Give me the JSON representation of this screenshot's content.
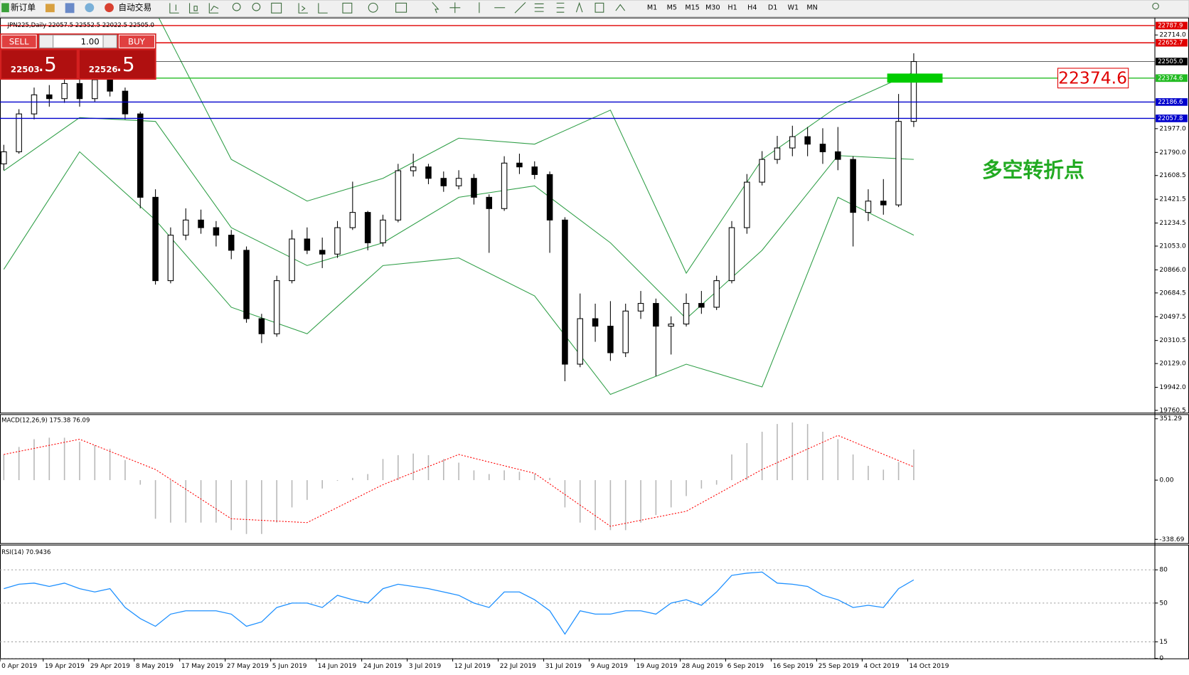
{
  "toolbar": {
    "new_order": "新订单",
    "auto_trading": "自动交易",
    "timeframes": [
      "M1",
      "M5",
      "M15",
      "M30",
      "H1",
      "H4",
      "D1",
      "W1",
      "MN"
    ]
  },
  "trade_panel": {
    "sell": "SELL",
    "buy": "BUY",
    "lot": "1.00",
    "bid_main": "22503",
    "bid_frac": ".5",
    "ask_main": "22526",
    "ask_frac": ".5"
  },
  "chart_data": [
    {
      "type": "candlestick",
      "title": "JPN225,Daily  22057.5 22552.5 22022.5 22505.0",
      "xlim": [
        -0.25,
        75.9
      ],
      "xticks": [
        {
          "value": -0.25,
          "label": "0 Apr 2019"
        },
        {
          "value": 2.6,
          "label": "19 Apr 2019"
        },
        {
          "value": 5.6,
          "label": "29 Apr 2019"
        },
        {
          "value": 8.6,
          "label": "8 May 2019"
        },
        {
          "value": 11.6,
          "label": "17 May 2019"
        },
        {
          "value": 14.6,
          "label": "27 May 2019"
        },
        {
          "value": 17.6,
          "label": "5 Jun 2019"
        },
        {
          "value": 20.6,
          "label": "14 Jun 2019"
        },
        {
          "value": 23.6,
          "label": "24 Jun 2019"
        },
        {
          "value": 26.6,
          "label": "3 Jul 2019"
        },
        {
          "value": 29.6,
          "label": "12 Jul 2019"
        },
        {
          "value": 32.6,
          "label": "22 Jul 2019"
        },
        {
          "value": 35.6,
          "label": "31 Jul 2019"
        },
        {
          "value": 38.6,
          "label": "9 Aug 2019"
        },
        {
          "value": 41.6,
          "label": "19 Aug 2019"
        },
        {
          "value": 44.6,
          "label": "28 Aug 2019"
        },
        {
          "value": 47.6,
          "label": "6 Sep 2019"
        },
        {
          "value": 50.6,
          "label": "16 Sep 2019"
        },
        {
          "value": 53.6,
          "label": "25 Sep 2019"
        },
        {
          "value": 56.6,
          "label": "4 Oct 2019"
        },
        {
          "value": 59.6,
          "label": "14 Oct 2019"
        }
      ],
      "ylim": [
        19742.4,
        22821.4
      ],
      "yticks": [
        {
          "value": 22714,
          "label": "22714.0"
        },
        {
          "value": 21977,
          "label": "21977.0"
        },
        {
          "value": 21790,
          "label": "21790.0"
        },
        21608.5,
        21421.5,
        21234.5,
        {
          "value": 21053,
          "label": "21053.0"
        },
        {
          "value": 20866,
          "label": "20866.0"
        },
        20684.5,
        20497.5,
        20310.5,
        {
          "value": 20129,
          "label": "20129.0"
        },
        {
          "value": 19942,
          "label": "19942.0"
        },
        19760.5
      ],
      "open": [
        21700,
        21795,
        22093,
        22243,
        22213,
        22332,
        22213,
        22362,
        22272,
        22093,
        21437,
        20781,
        21139,
        21258,
        21198,
        21139,
        21020,
        20482,
        20363,
        20781,
        21109,
        21020,
        20990,
        21198,
        21318,
        21079,
        21258,
        21646,
        21676,
        21586,
        21527,
        21586,
        21437,
        21348,
        21706,
        21676,
        21616,
        21258,
        20124,
        20482,
        20423,
        20214,
        20542,
        20602,
        20423,
        20440,
        20602,
        20572,
        20781,
        21198,
        21556,
        21735,
        21825,
        21914,
        21855,
        21795,
        21735,
        21318,
        21407,
        21377,
        22034
      ],
      "high": [
        21850,
        22130,
        22300,
        22320,
        22400,
        22380,
        22420,
        22400,
        22300,
        22110,
        21500,
        21200,
        21350,
        21340,
        21250,
        21180,
        21050,
        20520,
        20820,
        21180,
        21200,
        21120,
        21250,
        21560,
        21330,
        21300,
        21700,
        21780,
        21700,
        21640,
        21650,
        21620,
        21460,
        21760,
        21780,
        21720,
        21640,
        21280,
        20680,
        20600,
        20620,
        20600,
        20700,
        20640,
        20500,
        20680,
        20700,
        20820,
        21250,
        21620,
        21800,
        21920,
        22000,
        21990,
        21980,
        21990,
        21760,
        21500,
        21580,
        22250,
        22570
      ],
      "low": [
        21650,
        21780,
        22050,
        22150,
        22180,
        22150,
        22190,
        22230,
        22050,
        21350,
        20750,
        20760,
        21100,
        21150,
        21050,
        20950,
        20450,
        20290,
        20340,
        20760,
        20990,
        20880,
        20960,
        21180,
        21020,
        21050,
        21240,
        21600,
        21540,
        21480,
        21500,
        21380,
        21000,
        21330,
        21620,
        21580,
        21000,
        19990,
        20100,
        20300,
        20150,
        20180,
        20480,
        20030,
        20200,
        20420,
        20520,
        20550,
        20760,
        21150,
        21530,
        21700,
        21760,
        21760,
        21700,
        21650,
        21050,
        21250,
        21300,
        21360,
        21990
      ],
      "close": [
        21795,
        22093,
        22243,
        22213,
        22332,
        22213,
        22362,
        22272,
        22093,
        21437,
        20781,
        21139,
        21258,
        21198,
        21139,
        21020,
        20482,
        20363,
        20781,
        21109,
        21020,
        20990,
        21198,
        21318,
        21079,
        21258,
        21646,
        21676,
        21586,
        21527,
        21586,
        21437,
        21348,
        21706,
        21676,
        21616,
        21258,
        20124,
        20482,
        20423,
        20214,
        20542,
        20602,
        20423,
        20440,
        20602,
        20572,
        20781,
        21198,
        21556,
        21735,
        21825,
        21914,
        21855,
        21795,
        21735,
        21318,
        21407,
        21377,
        22034,
        22505
      ],
      "up_color": "#ffffff",
      "down_color": "#000000",
      "bands": {
        "color": "#2e9e46",
        "x": [
          0,
          5,
          10,
          15,
          20,
          25,
          30,
          35,
          40,
          45,
          50,
          55,
          60
        ],
        "upper": [
          23000,
          23000,
          22900,
          21735,
          21407,
          21586,
          21902,
          21855,
          22123,
          20840,
          21735,
          22153,
          22422
        ],
        "middle": [
          21646,
          22064,
          22034,
          21198,
          20900,
          21079,
          21437,
          21527,
          21079,
          20482,
          21020,
          21765,
          21735
        ],
        "lower": [
          20870,
          21795,
          21258,
          20572,
          20363,
          20900,
          20960,
          20661,
          19886,
          20124,
          19945,
          21437,
          21139
        ]
      },
      "price_lines": [
        {
          "value": 22787.9,
          "color": "#e00000"
        },
        {
          "value": 22652.7,
          "color": "#e00000"
        },
        {
          "value": 22505,
          "label": "22505.0",
          "color": "#000000"
        },
        {
          "value": 22374.6,
          "color": "#22bb22"
        },
        {
          "value": 22186.6,
          "color": "#0000cc"
        },
        {
          "value": 22057.8,
          "color": "#0000cc"
        }
      ],
      "highlight": {
        "value": 22374.6,
        "color": "#00cc00",
        "box_color": "#e00000"
      },
      "annotation": {
        "text": "多空转折点",
        "color": "#22aa22"
      }
    },
    {
      "type": "macd",
      "title": "MACD(12,26,9) 175.38 76.09",
      "ylim": [
        -338.69,
        351.29
      ],
      "yticks": [
        351.29,
        {
          "value": 0,
          "label": "0.00"
        },
        -338.69
      ],
      "histogram_color": "#b8b8b8",
      "histogram": [
        147,
        190,
        234,
        243,
        243,
        220,
        200,
        180,
        115,
        -26,
        -221,
        -243,
        -243,
        -243,
        -243,
        -286,
        -308,
        -308,
        -243,
        -156,
        -113,
        -48,
        -4,
        13,
        35,
        121,
        143,
        152,
        143,
        121,
        100,
        56,
        35,
        56,
        48,
        35,
        13,
        -156,
        -243,
        -286,
        -286,
        -286,
        -243,
        -200,
        -156,
        -91,
        -48,
        -26,
        147,
        212,
        277,
        321,
        330,
        321,
        277,
        234,
        147,
        82,
        60,
        104,
        175.38
      ],
      "signal": {
        "color": "#ff0000",
        "x": [
          0,
          5,
          10,
          15,
          20,
          25,
          30,
          35,
          40,
          45,
          50,
          55,
          60
        ],
        "values": [
          147,
          234,
          61,
          -221,
          -243,
          -26,
          147,
          39,
          -264,
          -178,
          61,
          256,
          76.09
        ]
      }
    },
    {
      "type": "line",
      "title": "RSI(14) 70.9436",
      "ylim": [
        0,
        100
      ],
      "yticks": [
        80,
        50,
        15,
        0
      ],
      "grid": true,
      "color": "#1e90ff",
      "values": [
        63,
        67,
        68,
        65,
        68,
        63,
        60,
        63,
        46,
        36,
        29,
        40,
        43,
        43,
        43,
        40,
        29,
        33,
        46,
        50,
        50,
        46,
        57,
        53,
        50,
        63,
        67,
        65,
        63,
        60,
        57,
        50,
        46,
        60,
        60,
        53,
        43,
        22,
        43,
        40,
        40,
        43,
        43,
        40,
        50,
        53,
        48,
        60,
        75,
        77,
        78,
        68,
        67,
        65,
        57,
        53,
        46,
        48,
        46,
        63,
        70.9436
      ]
    }
  ]
}
